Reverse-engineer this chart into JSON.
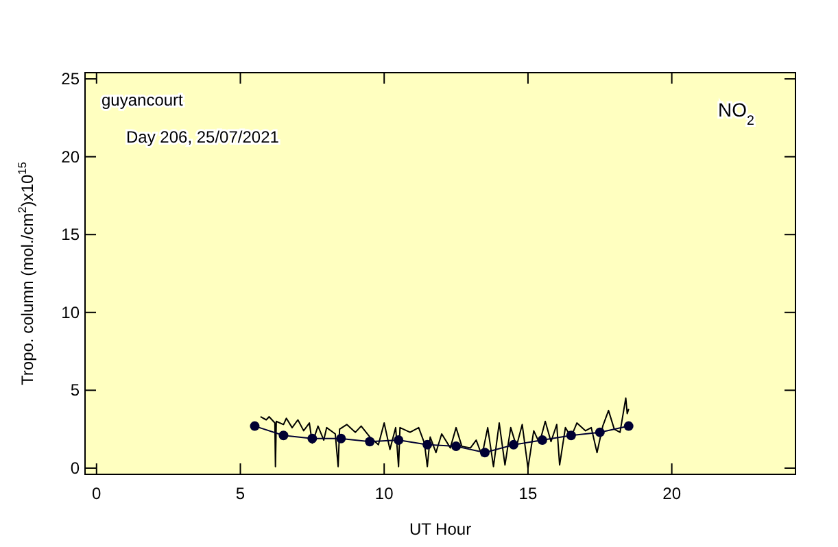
{
  "chart_data": {
    "type": "line",
    "xlabel": "UT Hour",
    "ylabel": "Tropo. column (mol./cm$^{2}$)x10$^{15}$",
    "annotations": [
      "guyancourt",
      "Day 206, 25/07/2021",
      "NO$_{2}$"
    ],
    "xlim": [
      -0.4,
      24.3
    ],
    "ylim": [
      -0.4,
      25.4
    ],
    "xticks": [
      0,
      5,
      10,
      15,
      20
    ],
    "yticks": [
      0,
      5,
      10,
      15,
      20,
      25
    ],
    "series": [
      {
        "color": "#000000",
        "marker": "none",
        "x": [
          5.7,
          5.9,
          6.0,
          6.2,
          6.22,
          6.25,
          6.5,
          6.6,
          6.8,
          7.0,
          7.2,
          7.4,
          7.5,
          7.7,
          7.9,
          8.0,
          8.3,
          8.4,
          8.45,
          8.7,
          9.0,
          9.2,
          9.5,
          9.8,
          10.0,
          10.2,
          10.4,
          10.5,
          10.55,
          10.9,
          11.2,
          11.4,
          11.5,
          11.6,
          11.8,
          12.0,
          12.3,
          12.5,
          12.7,
          13.0,
          13.2,
          13.4,
          13.6,
          13.8,
          14.0,
          14.2,
          14.4,
          14.6,
          14.8,
          15.0,
          15.2,
          15.4,
          15.6,
          15.8,
          16.0,
          16.1,
          16.3,
          16.5,
          16.7,
          17.0,
          17.2,
          17.4,
          17.6,
          17.8,
          18.0,
          18.2,
          18.4,
          18.45,
          18.5
        ],
        "values": [
          3.3,
          3.1,
          3.3,
          2.9,
          0.1,
          3.0,
          2.8,
          3.2,
          2.6,
          3.1,
          2.4,
          2.9,
          1.6,
          2.7,
          1.8,
          2.6,
          2.2,
          0.1,
          2.5,
          2.8,
          2.3,
          2.7,
          2.0,
          1.5,
          2.9,
          1.2,
          2.6,
          0.1,
          2.6,
          2.3,
          2.6,
          1.6,
          0.1,
          2.0,
          1.0,
          2.2,
          1.3,
          2.6,
          1.4,
          1.3,
          1.8,
          0.8,
          2.6,
          0.1,
          2.9,
          0.2,
          2.6,
          1.4,
          2.8,
          0.0,
          2.4,
          1.6,
          3.0,
          1.7,
          2.8,
          0.2,
          2.6,
          2.0,
          2.9,
          2.4,
          2.6,
          1.0,
          2.7,
          3.7,
          2.5,
          2.3,
          4.5,
          3.5,
          3.8
        ]
      },
      {
        "color": "#000033",
        "marker": "circle",
        "x": [
          5.5,
          6.5,
          7.5,
          8.5,
          9.5,
          10.5,
          11.5,
          12.5,
          13.5,
          14.5,
          15.5,
          16.5,
          17.5,
          18.5
        ],
        "values": [
          2.7,
          2.1,
          1.9,
          1.9,
          1.7,
          1.8,
          1.5,
          1.4,
          1.0,
          1.5,
          1.8,
          2.1,
          2.3,
          2.7
        ]
      }
    ]
  }
}
